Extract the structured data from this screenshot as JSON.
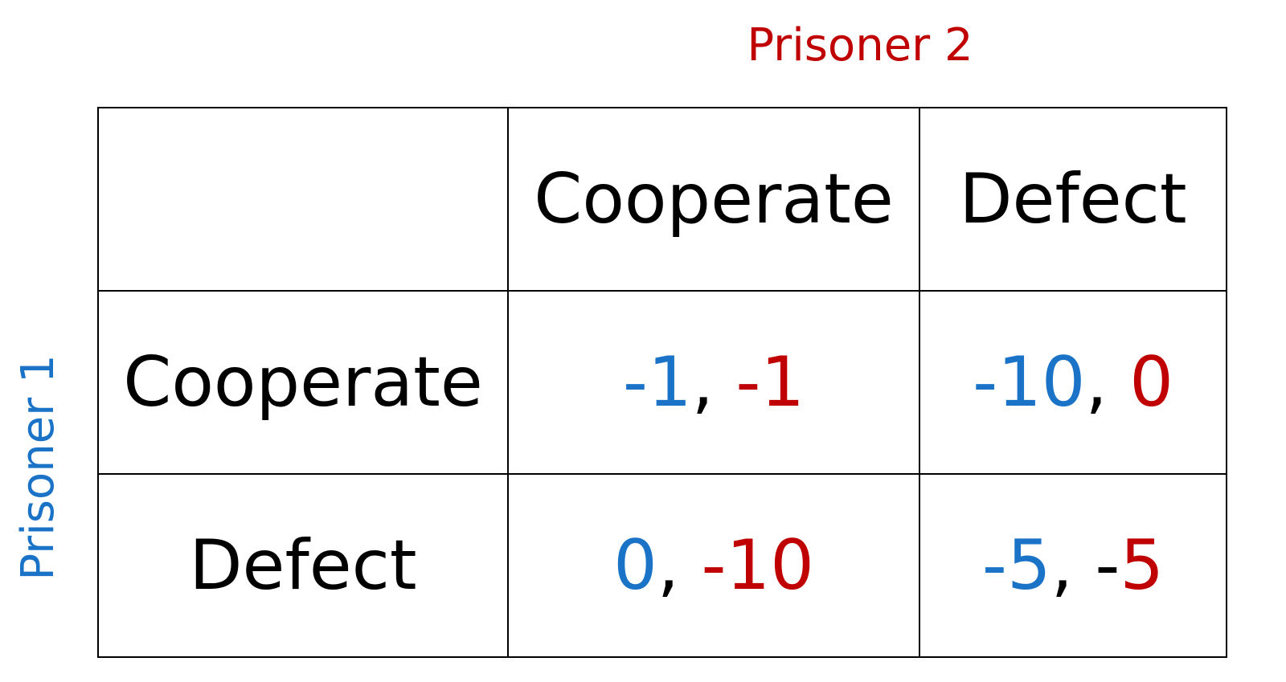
{
  "colors": {
    "prisoner1": "#1a73c7",
    "prisoner2": "#c00000",
    "text": "#000000"
  },
  "players": {
    "column_player": "Prisoner 2",
    "row_player": "Prisoner 1"
  },
  "strategies": {
    "columns": [
      "Cooperate",
      "Defect"
    ],
    "rows": [
      "Cooperate",
      "Defect"
    ]
  },
  "payoffs": [
    [
      {
        "p1": "-1",
        "sep": ", ",
        "p2": "-1"
      },
      {
        "p1": "-10",
        "sep": ", ",
        "p2": "0"
      }
    ],
    [
      {
        "p1": "0",
        "sep": ", ",
        "p2": "-10"
      },
      {
        "p1": "-5",
        "sep": ", -",
        "p2": "5"
      }
    ]
  ]
}
